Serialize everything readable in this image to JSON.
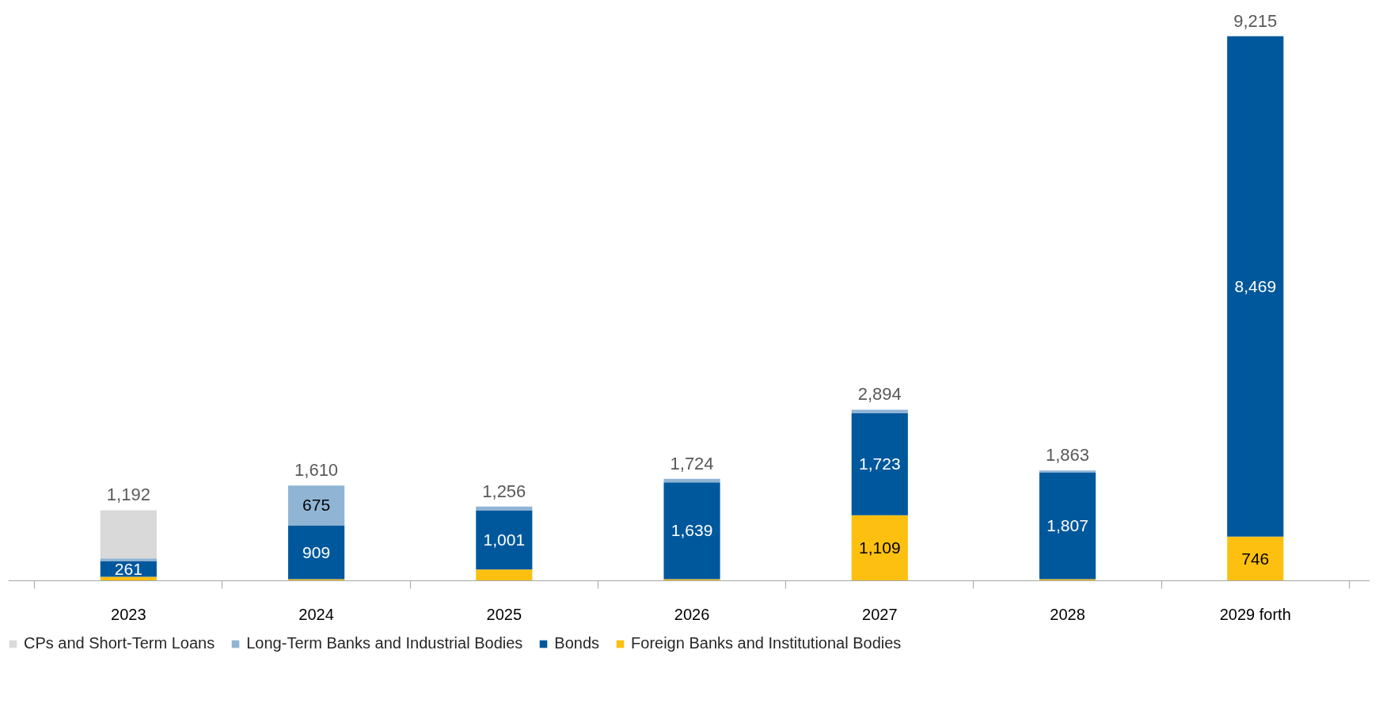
{
  "chart_data": {
    "type": "bar",
    "stacked": true,
    "categories": [
      "2023",
      "2024",
      "2025",
      "2026",
      "2027",
      "2028",
      "2029 forth"
    ],
    "series": [
      {
        "name": "Foreign Banks and Institutional Bodies",
        "color": "#fdc010",
        "values": [
          65,
          26,
          190,
          25,
          1109,
          26,
          746
        ],
        "value_labels": [
          null,
          null,
          null,
          null,
          "1,109",
          null,
          "746"
        ]
      },
      {
        "name": "Bonds",
        "color": "#00589c",
        "values": [
          261,
          909,
          1001,
          1639,
          1723,
          1807,
          8469
        ],
        "value_labels": [
          "261",
          "909",
          "1,001",
          "1,639",
          "1,723",
          "1,807",
          "8,469"
        ]
      },
      {
        "name": "Long-Term Banks and Industrial Bodies",
        "color": "#8fb4d4",
        "values": [
          50,
          675,
          65,
          60,
          62,
          30,
          null
        ],
        "value_labels": [
          null,
          "675",
          null,
          null,
          null,
          null,
          null
        ]
      },
      {
        "name": "CPs and Short-Term Loans",
        "color": "#d9d9d9",
        "values": [
          816,
          null,
          null,
          null,
          null,
          null,
          null
        ]
      }
    ],
    "totals": [
      "1,192",
      "1,610",
      "1,256",
      "1,724",
      "2,894",
      "1,863",
      "9,215"
    ],
    "legend": "bottom left",
    "grid": false
  }
}
